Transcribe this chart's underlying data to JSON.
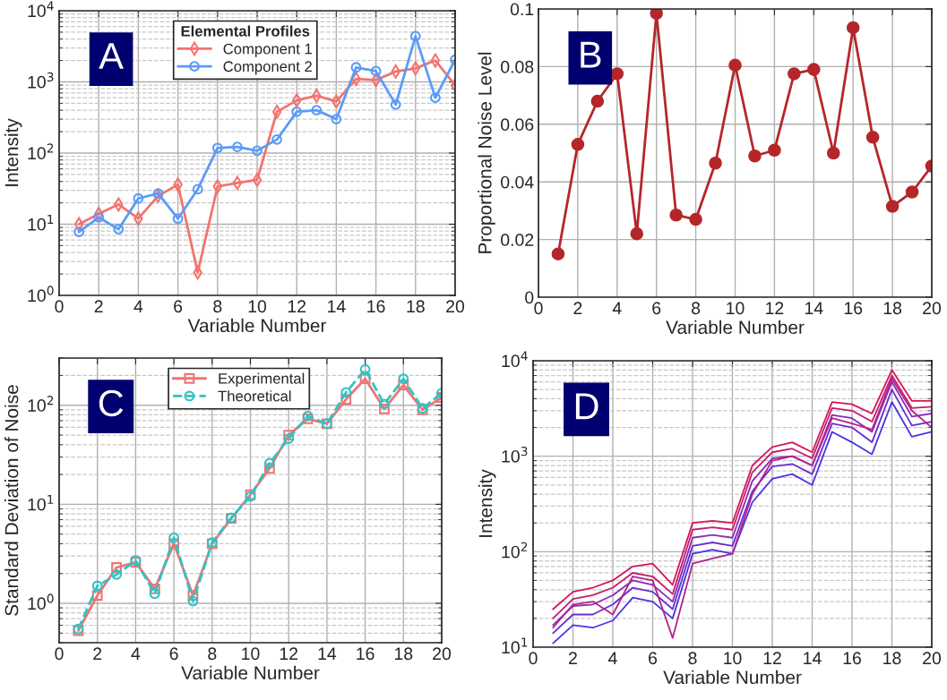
{
  "chart_data": [
    {
      "type": "line",
      "xlabel": "Variable Number",
      "ylabel": "Intensity",
      "x": [
        1,
        2,
        3,
        4,
        5,
        6,
        7,
        8,
        9,
        10,
        11,
        12,
        13,
        14,
        15,
        16,
        17,
        18,
        19,
        20
      ],
      "log": "y",
      "grid": true,
      "legend": "top",
      "legend_title": "Elemental Profiles",
      "annotations": [
        "A"
      ],
      "xlim": [
        0,
        20
      ],
      "xticks": [
        0,
        2,
        4,
        6,
        8,
        10,
        12,
        14,
        16,
        18,
        20
      ],
      "ylim": [
        1,
        10000
      ],
      "yticks": [
        {
          "value": 1,
          "label": "10$^{0}$"
        },
        {
          "value": 10,
          "label": "10$^{1}$"
        },
        {
          "value": 100,
          "label": "10$^{2}$"
        },
        {
          "value": 1000,
          "label": "10$^{3}$"
        },
        {
          "value": 10000,
          "label": "10$^{4}$"
        }
      ],
      "series": [
        {
          "name": "Component 1",
          "color": "#f4726f",
          "marker": "diamond",
          "line_style": "solid",
          "values": [
            10,
            14,
            19,
            12,
            25,
            36,
            2.1,
            34,
            38,
            42,
            380,
            550,
            640,
            530,
            1100,
            1060,
            1400,
            1550,
            2000,
            900
          ]
        },
        {
          "name": "Component 2",
          "color": "#5b9bf8",
          "marker": "circle",
          "line_style": "solid",
          "values": [
            7.8,
            12.5,
            8.5,
            23,
            27,
            12,
            31,
            118,
            122,
            108,
            155,
            380,
            400,
            300,
            1600,
            1420,
            480,
            4400,
            600,
            2050
          ]
        }
      ]
    },
    {
      "type": "line",
      "xlabel": "Variable Number",
      "ylabel": "Proportional Noise Level",
      "x": [
        1,
        2,
        3,
        4,
        5,
        6,
        7,
        8,
        9,
        10,
        11,
        12,
        13,
        14,
        15,
        16,
        17,
        18,
        19,
        20
      ],
      "grid": true,
      "annotations": [
        "B"
      ],
      "xlim": [
        0,
        20
      ],
      "xticks": [
        0,
        2,
        4,
        6,
        8,
        10,
        12,
        14,
        16,
        18,
        20
      ],
      "ylim": [
        0,
        0.1
      ],
      "yticks": [
        0,
        0.02,
        0.04,
        0.06,
        0.08,
        0.1
      ],
      "series": [
        {
          "color": "#b5262a",
          "marker": "circle",
          "line_style": "solid",
          "values": [
            0.015,
            0.053,
            0.068,
            0.0775,
            0.022,
            0.0985,
            0.0285,
            0.027,
            0.0465,
            0.0805,
            0.049,
            0.051,
            0.0775,
            0.079,
            0.05,
            0.0935,
            0.0555,
            0.0315,
            0.0365,
            0.0455
          ]
        }
      ]
    },
    {
      "type": "line",
      "xlabel": "Variable Number",
      "ylabel": "Standard Deviation of Noise",
      "x": [
        1,
        2,
        3,
        4,
        5,
        6,
        7,
        8,
        9,
        10,
        11,
        12,
        13,
        14,
        15,
        16,
        17,
        18,
        19,
        20
      ],
      "log": "y",
      "grid": true,
      "legend": "top",
      "annotations": [
        "C"
      ],
      "xlim": [
        0,
        20
      ],
      "xticks": [
        0,
        2,
        4,
        6,
        8,
        10,
        12,
        14,
        16,
        18,
        20
      ],
      "ylim": [
        0.4,
        300
      ],
      "yticks": [
        {
          "value": 1,
          "label": "10$^{0}$"
        },
        {
          "value": 10,
          "label": "10$^{1}$"
        },
        {
          "value": 100,
          "label": "10$^{2}$"
        }
      ],
      "series": [
        {
          "name": "Experimental",
          "color": "#f07474",
          "marker": "square",
          "line_style": "solid",
          "values": [
            0.53,
            1.2,
            2.3,
            2.6,
            1.4,
            4.0,
            1.2,
            4.0,
            7.2,
            12.5,
            23,
            50,
            73,
            65,
            115,
            185,
            92,
            160,
            90,
            120
          ]
        },
        {
          "name": "Theoretical",
          "color": "#2ec4c4",
          "marker": "circle",
          "line_style": "dashed",
          "values": [
            0.55,
            1.5,
            1.95,
            2.7,
            1.25,
            4.6,
            1.05,
            4.1,
            7.3,
            12,
            26,
            46,
            78,
            65,
            135,
            230,
            103,
            185,
            93,
            133
          ]
        }
      ]
    },
    {
      "type": "line",
      "xlabel": "Variable Number",
      "ylabel": "Intensity",
      "x": [
        1,
        2,
        3,
        4,
        5,
        6,
        7,
        8,
        9,
        10,
        11,
        12,
        13,
        14,
        15,
        16,
        17,
        18,
        19,
        20
      ],
      "log": "y",
      "grid": true,
      "annotations": [
        "D"
      ],
      "xlim": [
        0,
        20
      ],
      "xticks": [
        0,
        2,
        4,
        6,
        8,
        10,
        12,
        14,
        16,
        18,
        20
      ],
      "ylim": [
        10,
        10000
      ],
      "yticks": [
        {
          "value": 10,
          "label": "10$^{1}$"
        },
        {
          "value": 100,
          "label": "10$^{2}$"
        },
        {
          "value": 1000,
          "label": "10$^{3}$"
        },
        {
          "value": 10000,
          "label": "10$^{4}$"
        }
      ],
      "series": [
        {
          "color": "#4b32e6",
          "marker": "none",
          "line_style": "solid",
          "values": [
            11,
            17,
            16,
            19,
            33,
            30,
            20,
            95,
            105,
            95,
            330,
            580,
            650,
            500,
            1800,
            1400,
            1050,
            3700,
            1600,
            1800
          ]
        },
        {
          "color": "#6a2cd0",
          "marker": "none",
          "line_style": "solid",
          "values": [
            14,
            22,
            22,
            28,
            42,
            38,
            25,
            115,
            125,
            115,
            430,
            780,
            830,
            650,
            2200,
            2000,
            1400,
            5000,
            2100,
            2300
          ]
        },
        {
          "color": "#8a2bb8",
          "marker": "none",
          "line_style": "solid",
          "values": [
            17,
            27,
            28,
            35,
            50,
            45,
            30,
            140,
            150,
            140,
            550,
            950,
            1000,
            800,
            2700,
            2500,
            1800,
            6000,
            2600,
            2800
          ]
        },
        {
          "color": "#b5228a",
          "marker": "none",
          "line_style": "solid",
          "values": [
            16,
            28,
            30,
            22,
            55,
            50,
            12.5,
            75,
            85,
            95,
            400,
            900,
            1000,
            800,
            2500,
            2200,
            1900,
            6500,
            3000,
            2000
          ]
        },
        {
          "color": "#c41c6e",
          "marker": "none",
          "line_style": "solid",
          "values": [
            20,
            32,
            35,
            42,
            60,
            55,
            36,
            170,
            180,
            170,
            680,
            1100,
            1200,
            950,
            3200,
            3000,
            2300,
            7000,
            3200,
            3300
          ]
        },
        {
          "color": "#d4145a",
          "marker": "none",
          "line_style": "solid",
          "values": [
            25,
            38,
            42,
            50,
            70,
            75,
            45,
            200,
            210,
            200,
            800,
            1250,
            1400,
            1100,
            3700,
            3500,
            2800,
            8000,
            3800,
            3800
          ]
        }
      ]
    }
  ]
}
